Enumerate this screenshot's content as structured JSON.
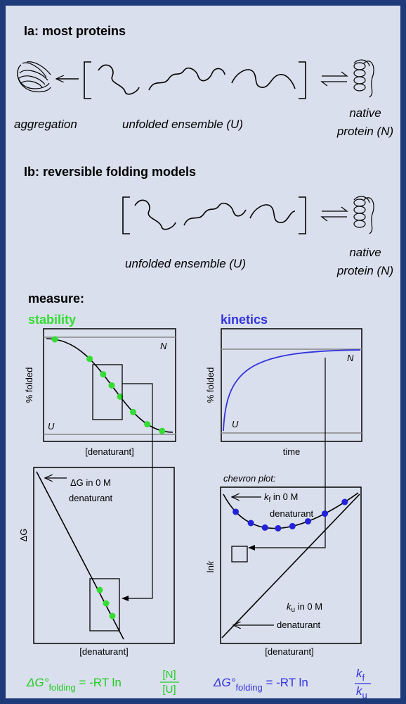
{
  "panel_a": {
    "title": "Ia:  most proteins",
    "aggregation": "aggregation",
    "unfolded": "unfolded ensemble (U)",
    "native": [
      "native",
      "protein (N)"
    ]
  },
  "panel_b": {
    "title": "Ib:  reversible folding models",
    "unfolded": "unfolded ensemble (U)",
    "native": [
      "native",
      "protein (N)"
    ]
  },
  "measure": {
    "heading": "measure:",
    "stability": {
      "title": "stability",
      "top_plot": {
        "y_label": "% folded",
        "x_label": "[denaturant]",
        "top": "N",
        "bottom": "U"
      },
      "bottom_plot": {
        "y_label": "ΔG",
        "x_label": "[denaturant]",
        "note": [
          "ΔG in 0 M",
          "denaturant"
        ]
      },
      "formula": {
        "lhs": "ΔG°",
        "sub": "folding",
        "op": " = -RT ln",
        "num": "[N]",
        "den": "[U]"
      }
    },
    "kinetics": {
      "title": "kinetics",
      "top_plot": {
        "y_label": "% folded",
        "x_label": "time",
        "top": "N",
        "bottom": "U"
      },
      "bottom_plot": {
        "caption": "chevron plot:",
        "y_label": [
          "ln",
          "k"
        ],
        "x_label": "[denaturant]",
        "note_f": [
          "k",
          "f",
          " in 0 M",
          "denaturant"
        ],
        "note_u": [
          "k",
          "u",
          " in 0 M",
          "denaturant"
        ]
      },
      "formula": {
        "lhs": "ΔG°",
        "sub": "folding",
        "op": " = -RT ln",
        "num": [
          "k",
          "f"
        ],
        "den": [
          "k",
          "u"
        ]
      }
    }
  }
}
